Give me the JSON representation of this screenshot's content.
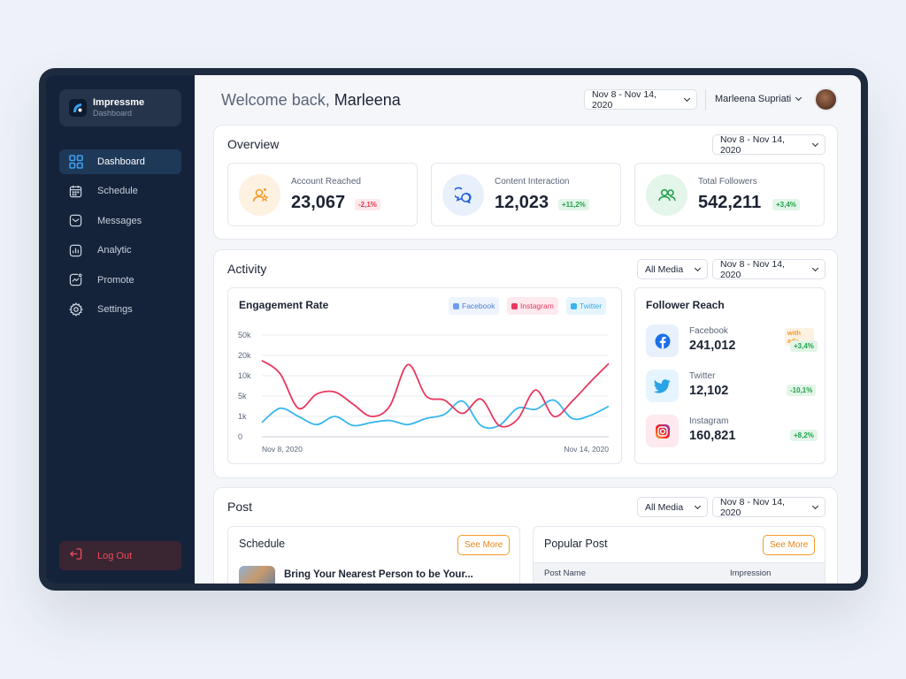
{
  "brand": {
    "name": "Impressme",
    "subtitle": "Dashboard"
  },
  "nav": [
    {
      "label": "Dashboard",
      "icon": "grid-icon",
      "active": true
    },
    {
      "label": "Schedule",
      "icon": "calendar-icon"
    },
    {
      "label": "Messages",
      "icon": "mail-icon"
    },
    {
      "label": "Analytic",
      "icon": "bar-chart-icon"
    },
    {
      "label": "Promote",
      "icon": "trend-icon"
    },
    {
      "label": "Settings",
      "icon": "gear-icon"
    }
  ],
  "logout_label": "Log Out",
  "header": {
    "welcome_prefix": "Welcome back, ",
    "welcome_name": "Marleena",
    "date_range": "Nov 8 - Nov 14, 2020",
    "user_name": "Marleena Supriati"
  },
  "overview": {
    "title": "Overview",
    "date_range": "Nov 8 - Nov 14, 2020",
    "stats": [
      {
        "label": "Account Reached",
        "value": "23,067",
        "change": "-2,1%",
        "icon": "user-star-icon",
        "color": "#f29b2a"
      },
      {
        "label": "Content Interaction",
        "value": "12,023",
        "change": "+11,2%",
        "icon": "chat-bubbles-icon",
        "color": "#2563d9"
      },
      {
        "label": "Total Followers",
        "value": "542,211",
        "change": "+3,4%",
        "icon": "users-icon",
        "color": "#23a34d"
      }
    ]
  },
  "activity": {
    "title": "Activity",
    "media_filter": "All Media",
    "date_range": "Nov 8 - Nov 14, 2020"
  },
  "engagement": {
    "title": "Engagement Rate",
    "legend": [
      "Facebook",
      "Instagram",
      "Twitter"
    ]
  },
  "chart_data": {
    "type": "line",
    "title": "Engagement Rate",
    "y_ticks": [
      "50k",
      "20k",
      "10k",
      "5k",
      "1k",
      "0"
    ],
    "x_start_label": "Nov 8, 2020",
    "x_end_label": "Nov 14, 2020",
    "series": [
      {
        "name": "Instagram",
        "color": "#e8385f",
        "values": [
          3.75,
          3.1,
          1.4,
          2.1,
          2.2,
          1.6,
          1.0,
          1.5,
          3.55,
          2.0,
          1.8,
          1.15,
          1.85,
          0.55,
          0.85,
          2.3,
          1.0,
          1.75,
          2.7,
          3.6
        ]
      },
      {
        "name": "Twitter",
        "color": "#38b6ec",
        "values": [
          0.7,
          1.4,
          1.0,
          0.6,
          1.0,
          0.55,
          0.7,
          0.8,
          0.6,
          0.9,
          1.1,
          1.75,
          0.55,
          0.55,
          1.4,
          1.35,
          1.8,
          0.9,
          1.05,
          1.5
        ]
      }
    ]
  },
  "follower_reach": {
    "title": "Follower Reach",
    "ads_note": "with ads",
    "items": [
      {
        "name": "Facebook",
        "value": "241,012",
        "change": "+3,4%",
        "icon": "facebook-icon"
      },
      {
        "name": "Twitter",
        "value": "12,102",
        "change": "-10,1%",
        "icon": "twitter-icon"
      },
      {
        "name": "Instagram",
        "value": "160,821",
        "change": "+8,2%",
        "icon": "instagram-icon"
      }
    ]
  },
  "post": {
    "title": "Post",
    "media_filter": "All Media",
    "date_range": "Nov 8 - Nov 14, 2020",
    "schedule_title": "Schedule",
    "schedule_item": "Bring Your Nearest Person to be Your...",
    "popular_title": "Popular Post",
    "see_more": "See More",
    "columns": [
      "Post Name",
      "Impression"
    ]
  }
}
